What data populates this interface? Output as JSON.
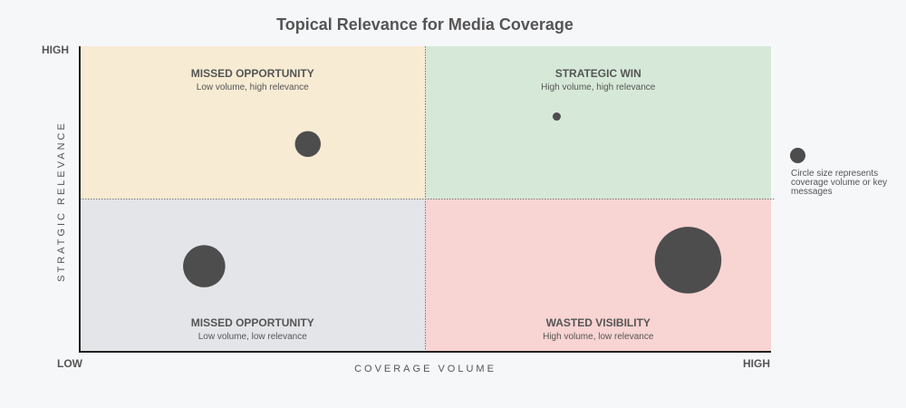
{
  "chart_data": {
    "type": "scatter",
    "title": "Topical Relevance for Media Coverage",
    "xlabel": "COVERAGE VOLUME",
    "ylabel": "STRATGIC RELEVANCE",
    "x_ticks": {
      "low": "LOW",
      "high": "HIGH"
    },
    "y_ticks": {
      "low": "LOW",
      "high": "HIGH"
    },
    "xlim": [
      0,
      1
    ],
    "ylim": [
      0,
      1
    ],
    "grid": false,
    "quadrants": [
      {
        "id": "top-left",
        "title": "MISSED OPPORTUNITY",
        "subtitle": "Low volume, high relevance",
        "color": "#f7ebd3"
      },
      {
        "id": "top-right",
        "title": "STRATEGIC WIN",
        "subtitle": "High volume, high relevance",
        "color": "#d6e9d8"
      },
      {
        "id": "bottom-left",
        "title": "MISSED OPPORTUNITY",
        "subtitle": "Low volume, low relevance",
        "color": "#e4e5e8"
      },
      {
        "id": "bottom-right",
        "title": "WASTED VISIBILITY",
        "subtitle": "High volume, low relevance",
        "color": "#f8d4d3"
      }
    ],
    "points": [
      {
        "x": 0.33,
        "y": 0.68,
        "size": 0.19
      },
      {
        "x": 0.69,
        "y": 0.77,
        "size": 0.06
      },
      {
        "x": 0.18,
        "y": 0.28,
        "size": 0.31
      },
      {
        "x": 0.88,
        "y": 0.3,
        "size": 0.49
      }
    ],
    "marker_color": "#4d4d4d",
    "legend": {
      "text": "Circle size represents coverage volume or key messages",
      "placement": "right"
    }
  }
}
